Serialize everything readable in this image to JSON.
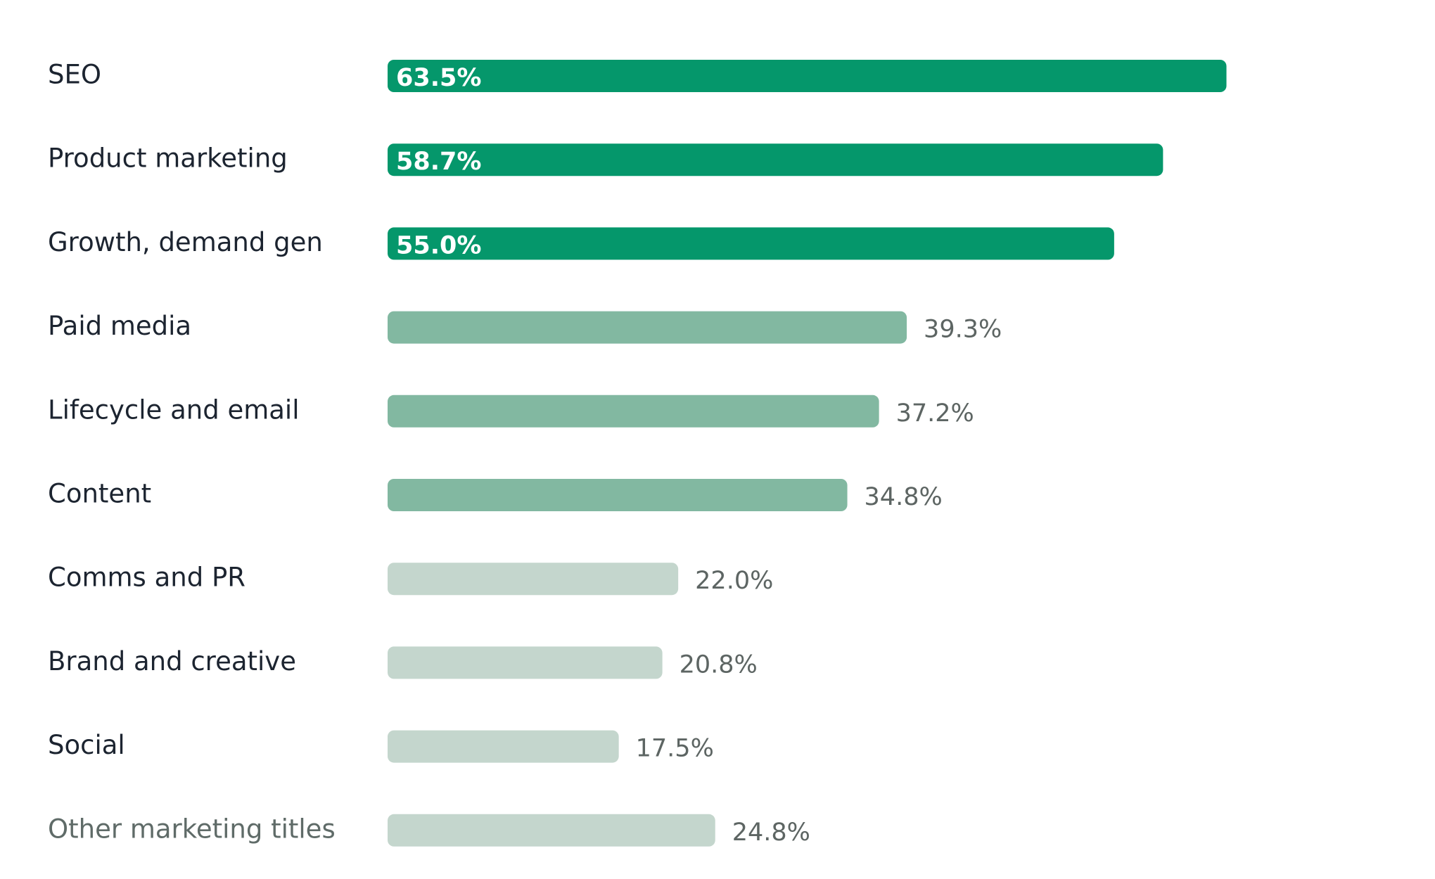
{
  "chart_data": {
    "type": "bar",
    "orientation": "horizontal",
    "categories": [
      "SEO",
      "Product marketing",
      "Growth, demand gen",
      "Paid media",
      "Lifecycle and email",
      "Content",
      "Comms and PR",
      "Brand and creative",
      "Social",
      "Other marketing titles"
    ],
    "values": [
      63.5,
      58.7,
      55.0,
      39.3,
      37.2,
      34.8,
      22.0,
      20.8,
      17.5,
      24.8
    ],
    "value_labels": [
      "63.5%",
      "58.7%",
      "55.0%",
      "39.3%",
      "37.2%",
      "34.8%",
      "22.0%",
      "20.8%",
      "17.5%",
      "24.8%"
    ],
    "tiers": [
      "high",
      "high",
      "high",
      "mid",
      "mid",
      "mid",
      "low",
      "low",
      "low",
      "low"
    ],
    "colors": {
      "high": "#05976b",
      "mid": "#82b8a1",
      "low": "#c4d6cd"
    },
    "muted_categories": [
      "Other marketing titles"
    ],
    "title": "",
    "xlabel": "",
    "ylabel": "",
    "xlim": [
      0,
      100
    ],
    "grid": false,
    "legend": "none"
  }
}
